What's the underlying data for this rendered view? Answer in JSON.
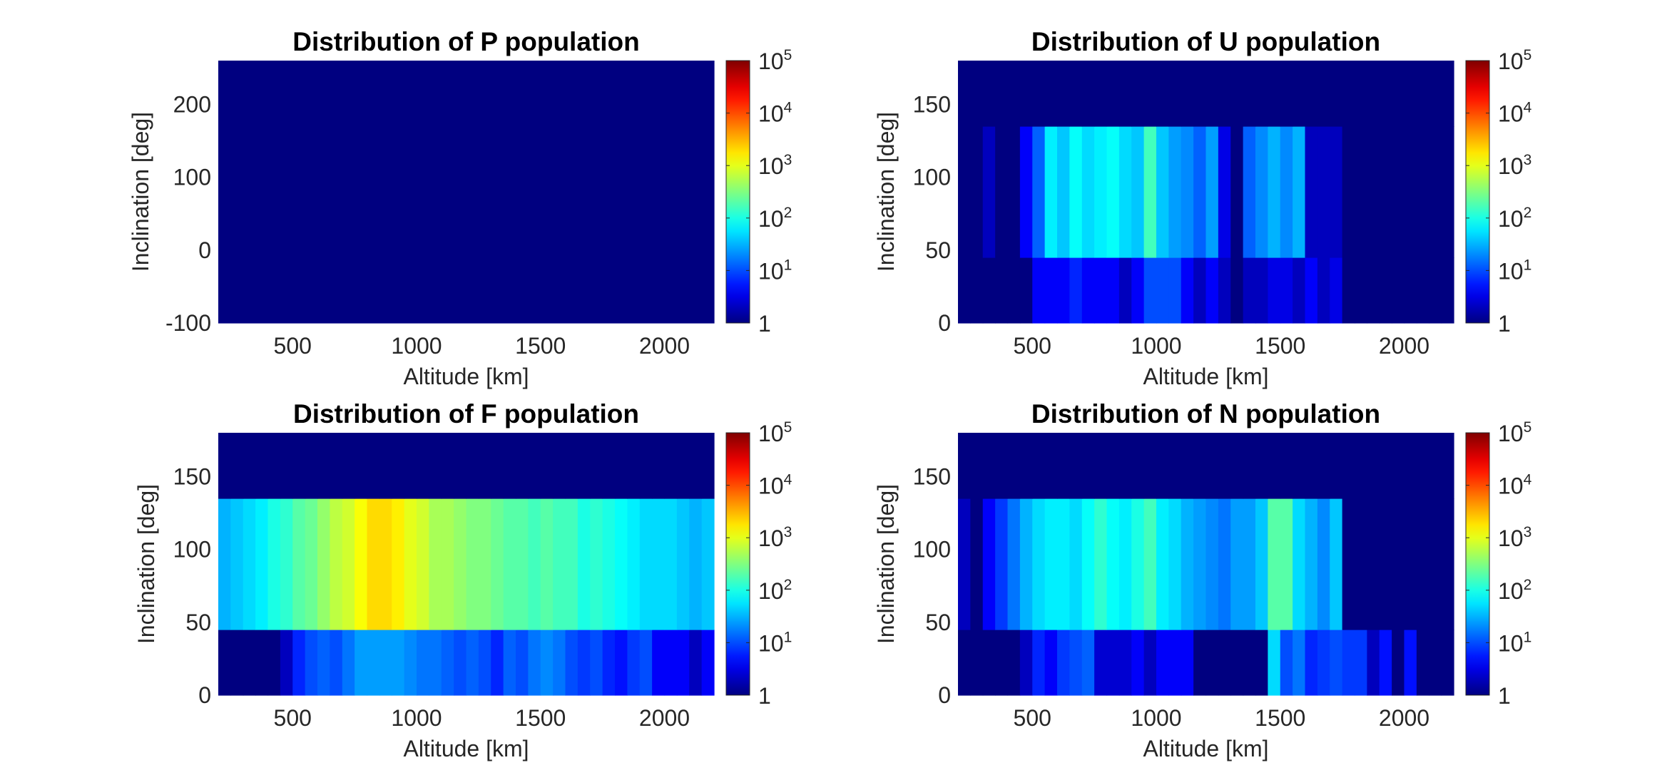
{
  "chart_data": [
    {
      "type": "heatmap",
      "title": "Distribution of P population",
      "xlabel": "Altitude [km]",
      "ylabel": "Inclination [deg]",
      "xlim": [
        200,
        2200
      ],
      "ylim": [
        -100,
        260
      ],
      "xticks": [
        500,
        1000,
        1500,
        2000
      ],
      "yticks": [
        -100,
        0,
        100,
        200
      ],
      "x_bins": [
        200,
        2200
      ],
      "y_bins": [
        -100,
        260
      ],
      "log10_counts": [
        [
          0
        ]
      ],
      "colorscale": "jet",
      "colorbar": {
        "min": 1,
        "max": 100000,
        "scale": "log",
        "ticks": [
          "1",
          "10",
          "10",
          "10",
          "10",
          "10"
        ],
        "exponents": [
          "",
          "1",
          "2",
          "3",
          "4",
          "5"
        ]
      }
    },
    {
      "type": "heatmap",
      "title": "Distribution of U population",
      "xlabel": "Altitude [km]",
      "ylabel": "Inclination [deg]",
      "xlim": [
        200,
        2200
      ],
      "ylim": [
        0,
        180
      ],
      "xticks": [
        500,
        1000,
        1500,
        2000
      ],
      "yticks": [
        0,
        50,
        100,
        150
      ],
      "x_bins": [
        200,
        250,
        300,
        350,
        400,
        450,
        500,
        550,
        600,
        650,
        700,
        750,
        800,
        850,
        900,
        950,
        1000,
        1050,
        1100,
        1150,
        1200,
        1250,
        1300,
        1350,
        1400,
        1450,
        1500,
        1550,
        1600,
        1650,
        1700,
        1750,
        1800,
        1850,
        1900,
        1950,
        2000,
        2050,
        2100,
        2150,
        2200
      ],
      "y_bins": [
        0,
        45,
        135,
        180
      ],
      "log10_counts": [
        [
          0,
          0,
          0,
          0,
          0,
          0,
          0.6,
          0.6,
          0.6,
          0.8,
          0.6,
          0.6,
          0.6,
          0.3,
          0.6,
          1.0,
          1.0,
          1.0,
          0.6,
          0.3,
          0.6,
          0.3,
          0,
          0.3,
          0.3,
          0.5,
          0.5,
          0.3,
          0.6,
          0.3,
          0.5,
          0,
          0,
          0,
          0,
          0,
          0,
          0,
          0,
          0
        ],
        [
          0,
          0,
          0.3,
          0,
          0,
          0.6,
          1.1,
          1.8,
          1.6,
          1.9,
          1.7,
          1.8,
          1.9,
          1.7,
          1.6,
          2.2,
          1.6,
          1.4,
          1.3,
          1.1,
          1.4,
          0.5,
          0,
          1.1,
          1.3,
          1.5,
          1.3,
          1.5,
          0.3,
          0.3,
          0.3,
          0,
          0,
          0,
          0,
          0,
          0,
          0,
          0,
          0
        ],
        [
          0,
          0,
          0,
          0,
          0,
          0,
          0,
          0,
          0,
          0,
          0,
          0,
          0,
          0,
          0,
          0,
          0,
          0,
          0,
          0,
          0,
          0,
          0,
          0,
          0,
          0,
          0,
          0,
          0,
          0,
          0,
          0,
          0,
          0,
          0,
          0,
          0,
          0,
          0,
          0
        ]
      ],
      "colorscale": "jet",
      "colorbar": {
        "min": 1,
        "max": 100000,
        "scale": "log",
        "ticks": [
          "1",
          "10",
          "10",
          "10",
          "10",
          "10"
        ],
        "exponents": [
          "",
          "1",
          "2",
          "3",
          "4",
          "5"
        ]
      }
    },
    {
      "type": "heatmap",
      "title": "Distribution of F population",
      "xlabel": "Altitude [km]",
      "ylabel": "Inclination [deg]",
      "xlim": [
        200,
        2200
      ],
      "ylim": [
        0,
        180
      ],
      "xticks": [
        500,
        1000,
        1500,
        2000
      ],
      "yticks": [
        0,
        50,
        100,
        150
      ],
      "x_bins": [
        200,
        250,
        300,
        350,
        400,
        450,
        500,
        550,
        600,
        650,
        700,
        750,
        800,
        850,
        900,
        950,
        1000,
        1050,
        1100,
        1150,
        1200,
        1250,
        1300,
        1350,
        1400,
        1450,
        1500,
        1550,
        1600,
        1650,
        1700,
        1750,
        1800,
        1850,
        1900,
        1950,
        2000,
        2050,
        2100,
        2150,
        2200
      ],
      "y_bins": [
        0,
        45,
        135,
        180
      ],
      "log10_counts": [
        [
          0,
          0,
          0,
          0,
          0,
          0.3,
          0.8,
          1.0,
          1.1,
          1.0,
          1.2,
          1.4,
          1.4,
          1.4,
          1.4,
          1.3,
          1.2,
          1.2,
          1.1,
          1.0,
          1.1,
          1.0,
          0.8,
          1.1,
          1.0,
          1.2,
          1.3,
          1.2,
          1.0,
          0.9,
          1.0,
          0.8,
          0.7,
          0.9,
          1.0,
          0.6,
          0.6,
          0.6,
          0.3,
          0.6
        ],
        [
          1.5,
          1.6,
          1.7,
          1.8,
          2.0,
          2.1,
          2.3,
          2.4,
          2.6,
          2.8,
          2.9,
          3.1,
          3.3,
          3.3,
          3.2,
          3.0,
          2.9,
          2.7,
          2.7,
          2.6,
          2.5,
          2.5,
          2.4,
          2.3,
          2.3,
          2.2,
          2.3,
          2.2,
          2.2,
          2.0,
          2.1,
          2.0,
          1.9,
          1.8,
          1.7,
          1.7,
          1.7,
          1.6,
          1.5,
          1.6
        ],
        [
          0,
          0,
          0,
          0,
          0,
          0,
          0,
          0,
          0,
          0,
          0,
          0,
          0,
          0,
          0,
          0,
          0,
          0,
          0,
          0,
          0,
          0,
          0,
          0,
          0,
          0,
          0,
          0,
          0,
          0,
          0,
          0,
          0,
          0,
          0,
          0,
          0,
          0,
          0,
          0
        ]
      ],
      "colorscale": "jet",
      "colorbar": {
        "min": 1,
        "max": 100000,
        "scale": "log",
        "ticks": [
          "1",
          "10",
          "10",
          "10",
          "10",
          "10"
        ],
        "exponents": [
          "",
          "1",
          "2",
          "3",
          "4",
          "5"
        ]
      }
    },
    {
      "type": "heatmap",
      "title": "Distribution of N population",
      "xlabel": "Altitude [km]",
      "ylabel": "Inclination [deg]",
      "xlim": [
        200,
        2200
      ],
      "ylim": [
        0,
        180
      ],
      "xticks": [
        500,
        1000,
        1500,
        2000
      ],
      "yticks": [
        0,
        50,
        100,
        150
      ],
      "x_bins": [
        200,
        250,
        300,
        350,
        400,
        450,
        500,
        550,
        600,
        650,
        700,
        750,
        800,
        850,
        900,
        950,
        1000,
        1050,
        1100,
        1150,
        1200,
        1250,
        1300,
        1350,
        1400,
        1450,
        1500,
        1550,
        1600,
        1650,
        1700,
        1750,
        1800,
        1850,
        1900,
        1950,
        2000,
        2050,
        2100,
        2150,
        2200
      ],
      "y_bins": [
        0,
        45,
        135,
        180
      ],
      "log10_counts": [
        [
          0,
          0,
          0,
          0,
          0,
          0.3,
          0.8,
          0.6,
          0.9,
          1.0,
          1.1,
          0.4,
          0.4,
          0.4,
          0.6,
          0.3,
          0.6,
          0.6,
          0.6,
          0,
          0,
          0,
          0,
          0,
          0,
          1.7,
          1.0,
          1.2,
          0.8,
          0.9,
          1.0,
          0.9,
          0.9,
          0.3,
          0.7,
          0,
          0.7,
          0,
          0,
          0
        ],
        [
          0.3,
          0,
          0.6,
          0.9,
          1.2,
          1.5,
          1.7,
          1.8,
          1.8,
          1.7,
          1.9,
          2.1,
          1.9,
          1.8,
          2.0,
          2.2,
          1.8,
          1.7,
          1.5,
          1.4,
          1.3,
          1.2,
          1.4,
          1.4,
          1.6,
          2.3,
          2.3,
          1.7,
          1.5,
          1.3,
          1.6,
          0,
          0,
          0,
          0,
          0,
          0,
          0,
          0,
          0
        ],
        [
          0,
          0,
          0,
          0,
          0,
          0,
          0,
          0,
          0,
          0,
          0,
          0,
          0,
          0,
          0,
          0,
          0,
          0,
          0,
          0,
          0,
          0,
          0,
          0,
          0,
          0,
          0,
          0,
          0,
          0,
          0,
          0,
          0,
          0,
          0,
          0,
          0,
          0,
          0,
          0
        ]
      ],
      "colorscale": "jet",
      "colorbar": {
        "min": 1,
        "max": 100000,
        "scale": "log",
        "ticks": [
          "1",
          "10",
          "10",
          "10",
          "10",
          "10"
        ],
        "exponents": [
          "",
          "1",
          "2",
          "3",
          "4",
          "5"
        ]
      }
    }
  ]
}
